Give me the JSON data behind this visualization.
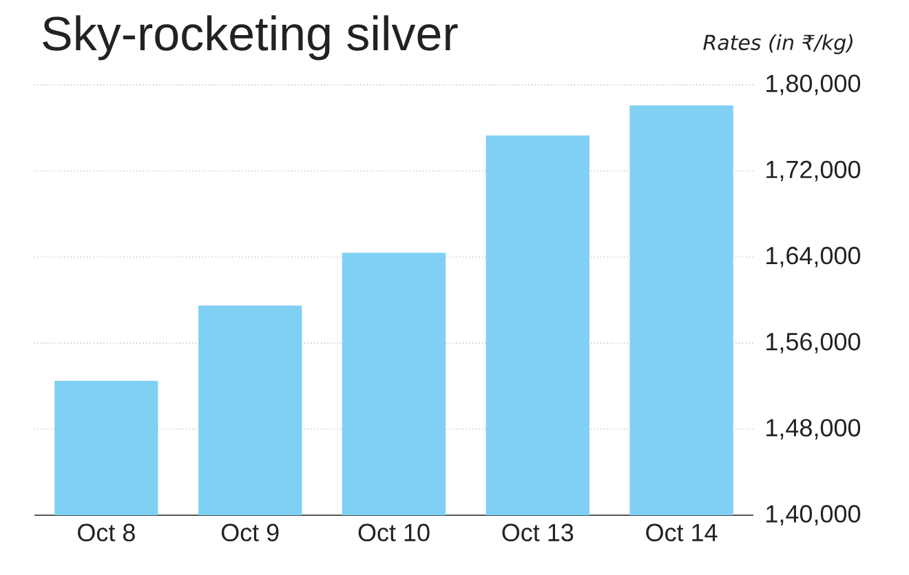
{
  "chart_data": {
    "type": "bar",
    "title": "Sky-rocketing silver",
    "ylabel": "Rates (in ₹/kg)",
    "categories": [
      "Oct 8",
      "Oct 9",
      "Oct 10",
      "Oct 13",
      "Oct 14"
    ],
    "values": [
      152500,
      159500,
      164400,
      175300,
      178100
    ],
    "color": "#80d0f4",
    "ylim": [
      140000,
      180000
    ],
    "yticks": [
      {
        "value": 140000,
        "label": "1,40,000"
      },
      {
        "value": 148000,
        "label": "1,48,000"
      },
      {
        "value": 156000,
        "label": "1,56,000"
      },
      {
        "value": 164000,
        "label": "1,64,000"
      },
      {
        "value": 172000,
        "label": "1,72,000"
      },
      {
        "value": 180000,
        "label": "1,80,000"
      }
    ],
    "grid": "y"
  }
}
